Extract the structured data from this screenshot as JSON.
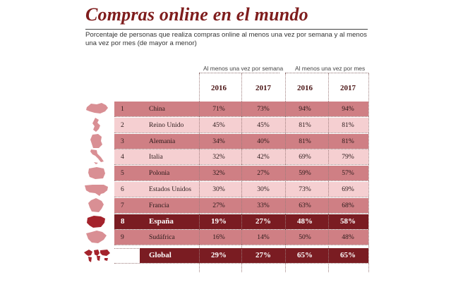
{
  "header": {
    "title": "Compras online en el mundo",
    "subtitle": "Porcentaje de personas que realiza compras online al menos una vez por semana y al menos una vez por mes (de mayor a menor)"
  },
  "chart_data": {
    "type": "table",
    "title": "Compras online en el mundo",
    "column_groups": [
      "Al menos una vez por semana",
      "Al menos una vez por mes"
    ],
    "years": [
      "2016",
      "2017",
      "2016",
      "2017"
    ],
    "rows": [
      {
        "rank": "1",
        "country": "China",
        "values": [
          "71%",
          "73%",
          "94%",
          "94%"
        ],
        "icon": "china-map-icon"
      },
      {
        "rank": "2",
        "country": "Reino Unido",
        "values": [
          "45%",
          "45%",
          "81%",
          "81%"
        ],
        "icon": "uk-map-icon"
      },
      {
        "rank": "3",
        "country": "Alemania",
        "values": [
          "34%",
          "40%",
          "81%",
          "81%"
        ],
        "icon": "germany-map-icon"
      },
      {
        "rank": "4",
        "country": "Italia",
        "values": [
          "32%",
          "42%",
          "69%",
          "79%"
        ],
        "icon": "italy-map-icon"
      },
      {
        "rank": "5",
        "country": "Polonia",
        "values": [
          "32%",
          "27%",
          "59%",
          "57%"
        ],
        "icon": "poland-map-icon"
      },
      {
        "rank": "6",
        "country": "Estados Unidos",
        "values": [
          "30%",
          "30%",
          "73%",
          "69%"
        ],
        "icon": "usa-map-icon"
      },
      {
        "rank": "7",
        "country": "Francia",
        "values": [
          "27%",
          "33%",
          "63%",
          "68%"
        ],
        "icon": "france-map-icon"
      },
      {
        "rank": "8",
        "country": "España",
        "values": [
          "19%",
          "27%",
          "48%",
          "58%"
        ],
        "icon": "spain-map-icon",
        "highlight": true
      },
      {
        "rank": "9",
        "country": "Sudáfrica",
        "values": [
          "16%",
          "14%",
          "50%",
          "48%"
        ],
        "icon": "south-africa-map-icon"
      },
      {
        "rank": "",
        "country": "Global",
        "values": [
          "29%",
          "27%",
          "65%",
          "65%"
        ],
        "icon": "world-map-icon",
        "highlight": true
      }
    ]
  },
  "colors": {
    "title": "#7f1d1d",
    "row_dark": "#cf7f84",
    "row_light": "#f5cfd1",
    "highlight": "#7a1c22",
    "icon_light": "#d98f94",
    "icon_dark": "#a4232c"
  }
}
